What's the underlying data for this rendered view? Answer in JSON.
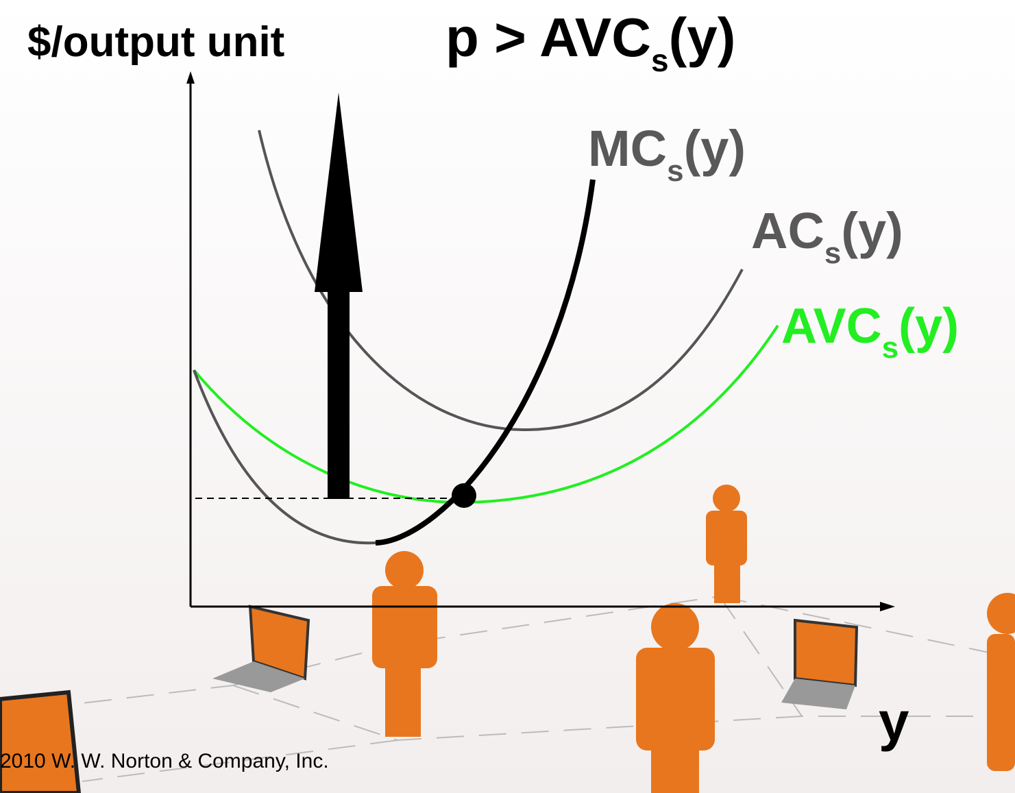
{
  "axes": {
    "y_label": "$/output unit",
    "x_label": "y"
  },
  "title": {
    "main": "p > AVC",
    "subscript": "s",
    "suffix": "(y)"
  },
  "curves": [
    {
      "label": "MC",
      "subscript": "s",
      "suffix": "(y)"
    },
    {
      "label": "AC",
      "subscript": "s",
      "suffix": "(y)"
    },
    {
      "label": "AVC",
      "subscript": "s",
      "suffix": "(y)"
    }
  ],
  "footer": "2010 W. W. Norton & Company, Inc."
}
